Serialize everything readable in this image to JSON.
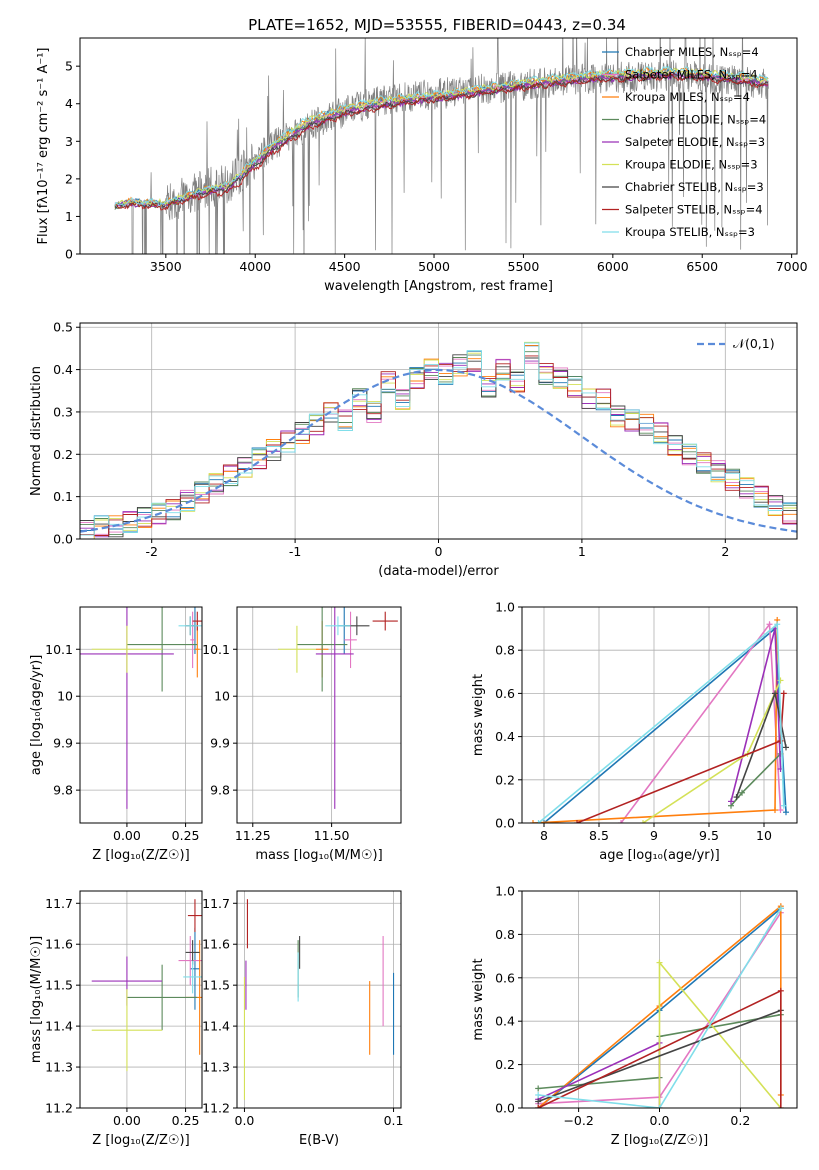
{
  "figure": {
    "title": "PLATE=1652, MJD=53555, FIBERID=0443, z=0.34"
  },
  "chart_data": [
    {
      "id": "spectrum",
      "type": "line",
      "xlabel": "wavelength [Angstrom, rest frame]",
      "ylabel": "Flux [fλ10⁻¹⁷ erg cm⁻² s⁻¹ A⁻¹]",
      "xlim": [
        3020,
        7030
      ],
      "ylim": [
        0,
        5.75
      ],
      "xticks": [
        3500,
        4000,
        4500,
        5000,
        5500,
        6000,
        6500,
        7000
      ],
      "yticks": [
        0,
        1,
        2,
        3,
        4,
        5
      ],
      "grid": false,
      "legend_position": "top-right",
      "data_range": [
        3215,
        6870
      ],
      "observed": {
        "color": "#808080",
        "x": [
          3215,
          3300,
          3500,
          3700,
          3850,
          3950,
          4100,
          4300,
          4500,
          4700,
          4900,
          5100,
          5300,
          5500,
          5700,
          5900,
          6100,
          6300,
          6500,
          6700,
          6870
        ],
        "y": [
          1.3,
          1.4,
          1.35,
          1.7,
          1.9,
          2.3,
          2.9,
          3.4,
          3.8,
          4.1,
          4.2,
          4.3,
          4.4,
          4.5,
          4.6,
          4.7,
          4.7,
          4.75,
          4.7,
          4.6,
          4.5
        ]
      },
      "series": [
        {
          "name": "Chabrier MILES, N_SSP=4",
          "color": "#1f77b4",
          "y": [
            1.25,
            1.38,
            1.33,
            1.68,
            1.82,
            2.25,
            2.9,
            3.55,
            3.85,
            4.05,
            4.15,
            4.25,
            4.4,
            4.55,
            4.65,
            4.75,
            4.8,
            4.85,
            4.8,
            4.7,
            4.6
          ]
        },
        {
          "name": "Salpeter MILES, N_SSP=4",
          "color": "#e377c2",
          "y": [
            1.27,
            1.37,
            1.32,
            1.66,
            1.8,
            2.22,
            2.85,
            3.5,
            3.8,
            4.0,
            4.12,
            4.22,
            4.36,
            4.5,
            4.6,
            4.7,
            4.75,
            4.8,
            4.75,
            4.65,
            4.55
          ]
        },
        {
          "name": "Kroupa MILES, N_SSP=4",
          "color": "#ff7f0e",
          "y": [
            1.28,
            1.4,
            1.36,
            1.7,
            1.85,
            2.28,
            2.95,
            3.6,
            3.9,
            4.1,
            4.2,
            4.3,
            4.45,
            4.6,
            4.7,
            4.8,
            4.85,
            4.9,
            4.85,
            4.75,
            4.65
          ]
        },
        {
          "name": "Chabrier ELODIE, N_SSP=4",
          "color": "#5c8a5c",
          "y": [
            1.24,
            1.36,
            1.31,
            1.64,
            1.78,
            2.2,
            2.82,
            3.45,
            3.78,
            3.98,
            4.1,
            4.2,
            4.34,
            4.48,
            4.58,
            4.68,
            4.72,
            4.78,
            4.73,
            4.63,
            4.53
          ]
        },
        {
          "name": "Salpeter ELODIE, N_SSP=3",
          "color": "#9b30b8",
          "y": [
            1.26,
            1.35,
            1.3,
            1.63,
            1.77,
            2.18,
            2.8,
            3.42,
            3.75,
            3.95,
            4.08,
            4.18,
            4.32,
            4.46,
            4.56,
            4.66,
            4.7,
            4.76,
            4.71,
            4.61,
            4.51
          ]
        },
        {
          "name": "Kroupa ELODIE, N_SSP=3",
          "color": "#d4e157",
          "y": [
            1.29,
            1.39,
            1.35,
            1.69,
            1.84,
            2.27,
            2.92,
            3.58,
            3.88,
            4.08,
            4.18,
            4.28,
            4.43,
            4.58,
            4.68,
            4.78,
            4.82,
            4.88,
            4.83,
            4.73,
            4.63
          ]
        },
        {
          "name": "Chabrier STELIB, N_SSP=3",
          "color": "#444444",
          "y": [
            1.23,
            1.34,
            1.29,
            1.62,
            1.76,
            2.17,
            2.78,
            3.4,
            3.73,
            3.93,
            4.06,
            4.16,
            4.3,
            4.44,
            4.54,
            4.64,
            4.68,
            4.74,
            4.69,
            4.59,
            4.49
          ]
        },
        {
          "name": "Salpeter STELIB, N_SSP=4",
          "color": "#b22222",
          "y": [
            1.22,
            1.3,
            1.25,
            1.55,
            1.65,
            2.05,
            2.7,
            3.35,
            3.7,
            3.9,
            4.05,
            4.15,
            4.3,
            4.42,
            4.52,
            4.62,
            4.66,
            4.72,
            4.67,
            4.57,
            4.47
          ]
        },
        {
          "name": "Kroupa STELIB, N_SSP=3",
          "color": "#80deea",
          "y": [
            1.3,
            1.41,
            1.37,
            1.71,
            1.86,
            2.3,
            2.97,
            3.62,
            3.92,
            4.12,
            4.22,
            4.32,
            4.47,
            4.62,
            4.72,
            4.82,
            4.87,
            4.92,
            4.87,
            4.77,
            4.67
          ]
        }
      ]
    },
    {
      "id": "residuals",
      "type": "line",
      "xlabel": "(data-model)/error",
      "ylabel": "Normed distribution",
      "xlim": [
        -2.5,
        2.5
      ],
      "ylim": [
        0,
        0.51
      ],
      "xticks": [
        -2,
        -1,
        0,
        1,
        2
      ],
      "yticks": [
        0.0,
        0.1,
        0.2,
        0.3,
        0.4,
        0.5
      ],
      "grid": true,
      "legend_position": "top-right",
      "legend": [
        {
          "name": "𝒩(0,1)",
          "color": "#5b8bd9",
          "style": "dashed"
        }
      ],
      "bin_width": 0.1,
      "histogram": [
        0.02,
        0.03,
        0.03,
        0.04,
        0.05,
        0.06,
        0.07,
        0.09,
        0.11,
        0.13,
        0.15,
        0.17,
        0.19,
        0.21,
        0.23,
        0.25,
        0.27,
        0.3,
        0.28,
        0.33,
        0.3,
        0.37,
        0.33,
        0.38,
        0.4,
        0.39,
        0.41,
        0.42,
        0.36,
        0.4,
        0.37,
        0.44,
        0.39,
        0.38,
        0.36,
        0.33,
        0.33,
        0.29,
        0.28,
        0.27,
        0.25,
        0.22,
        0.2,
        0.18,
        0.16,
        0.14,
        0.12,
        0.1,
        0.08,
        0.06
      ]
    },
    {
      "id": "age-vs-Z",
      "type": "scatter",
      "xlabel": "Z [log₁₀(Z/Z☉)]",
      "ylabel": "age  [log₁₀(age/yr)]",
      "xlim": [
        -0.2,
        0.32
      ],
      "ylim": [
        9.73,
        10.19
      ],
      "xticks": [
        0.0,
        0.25
      ],
      "xticklabels": [
        "0.00",
        "0.25"
      ],
      "yticks": [
        9.8,
        9.9,
        10.0,
        10.1
      ],
      "grid": true,
      "points": [
        {
          "color": "#1f77b4",
          "x": 0.29,
          "xerr": 0.01,
          "y": 10.15,
          "yerr": 0.06
        },
        {
          "color": "#e377c2",
          "x": 0.28,
          "xerr": 0.01,
          "y": 10.12,
          "yerr": 0.06
        },
        {
          "color": "#ff7f0e",
          "x": 0.3,
          "xerr": 0.01,
          "y": 10.1,
          "yerr": 0.06
        },
        {
          "color": "#5c8a5c",
          "x": 0.15,
          "xerr": 0.15,
          "y": 10.11,
          "yerr": 0.1
        },
        {
          "color": "#9b30b8",
          "x": 0.0,
          "xerr": 0.2,
          "y": 10.09,
          "yerr": 0.33
        },
        {
          "color": "#d4e157",
          "x": 0.0,
          "xerr": 0.15,
          "y": 10.1,
          "yerr": 0.05
        },
        {
          "color": "#444444",
          "x": 0.27,
          "xerr": 0.02,
          "y": 10.15,
          "yerr": 0.02
        },
        {
          "color": "#b22222",
          "x": 0.3,
          "xerr": 0.02,
          "y": 10.16,
          "yerr": 0.02
        },
        {
          "color": "#80deea",
          "x": 0.27,
          "xerr": 0.05,
          "y": 10.15,
          "yerr": 0.02
        }
      ]
    },
    {
      "id": "age-vs-mass",
      "type": "scatter",
      "xlabel": "mass [log₁₀(M/M☉)]",
      "ylabel": "",
      "xlim": [
        11.2,
        11.72
      ],
      "ylim": [
        9.73,
        10.19
      ],
      "xticks": [
        11.25,
        11.5
      ],
      "xticklabels": [
        "11.25",
        "11.50"
      ],
      "yticks": [
        9.8,
        9.9,
        10.0,
        10.1
      ],
      "grid": true,
      "points": [
        {
          "color": "#1f77b4",
          "x": 11.54,
          "xerr": 0.02,
          "y": 10.15,
          "yerr": 0.06
        },
        {
          "color": "#e377c2",
          "x": 11.56,
          "xerr": 0.02,
          "y": 10.12,
          "yerr": 0.06
        },
        {
          "color": "#ff7f0e",
          "x": 11.47,
          "xerr": 0.02,
          "y": 10.1,
          "yerr": 0.06
        },
        {
          "color": "#5c8a5c",
          "x": 11.47,
          "xerr": 0.08,
          "y": 10.11,
          "yerr": 0.1
        },
        {
          "color": "#9b30b8",
          "x": 11.51,
          "xerr": 0.06,
          "y": 10.09,
          "yerr": 0.33
        },
        {
          "color": "#d4e157",
          "x": 11.39,
          "xerr": 0.06,
          "y": 10.1,
          "yerr": 0.05
        },
        {
          "color": "#444444",
          "x": 11.58,
          "xerr": 0.04,
          "y": 10.15,
          "yerr": 0.02
        },
        {
          "color": "#b22222",
          "x": 11.67,
          "xerr": 0.04,
          "y": 10.16,
          "yerr": 0.02
        },
        {
          "color": "#80deea",
          "x": 11.52,
          "xerr": 0.04,
          "y": 10.15,
          "yerr": 0.02
        }
      ]
    },
    {
      "id": "weight-vs-age",
      "type": "line",
      "xlabel": "age  [log₁₀(age/yr)]",
      "ylabel": "mass weight",
      "xlim": [
        7.8,
        10.3
      ],
      "ylim": [
        0,
        1.0
      ],
      "xticks": [
        8.0,
        8.5,
        9.0,
        9.5,
        10.0
      ],
      "yticks": [
        0.0,
        0.2,
        0.4,
        0.6,
        0.8,
        1.0
      ],
      "grid": true,
      "series": [
        {
          "color": "#1f77b4",
          "x": [
            8.0,
            10.1,
            10.2
          ],
          "y": [
            0.0,
            0.9,
            0.05
          ]
        },
        {
          "color": "#e377c2",
          "x": [
            8.7,
            10.05,
            10.15
          ],
          "y": [
            0.0,
            0.92,
            0.06
          ]
        },
        {
          "color": "#ff7f0e",
          "x": [
            7.9,
            10.1,
            10.12
          ],
          "y": [
            0.0,
            0.06,
            0.94
          ]
        },
        {
          "color": "#5c8a5c",
          "x": [
            9.7,
            9.8,
            10.15
          ],
          "y": [
            0.08,
            0.14,
            0.32
          ]
        },
        {
          "color": "#9b30b8",
          "x": [
            9.7,
            10.1,
            10.15
          ],
          "y": [
            0.1,
            0.9,
            0.25
          ]
        },
        {
          "color": "#d4e157",
          "x": [
            8.9,
            9.85,
            10.15
          ],
          "y": [
            0.0,
            0.32,
            0.66
          ]
        },
        {
          "color": "#444444",
          "x": [
            9.75,
            10.1,
            10.2
          ],
          "y": [
            0.12,
            0.6,
            0.35
          ]
        },
        {
          "color": "#b22222",
          "x": [
            8.3,
            10.15,
            10.18
          ],
          "y": [
            0.0,
            0.38,
            0.6
          ]
        },
        {
          "color": "#80deea",
          "x": [
            7.95,
            10.12,
            10.18
          ],
          "y": [
            0.0,
            0.92,
            0.08
          ]
        }
      ]
    },
    {
      "id": "mass-vs-Z",
      "type": "scatter",
      "xlabel": "Z [log₁₀(Z/Z☉)]",
      "ylabel": "mass [log₁₀(M/M☉)]",
      "xlim": [
        -0.2,
        0.32
      ],
      "ylim": [
        11.2,
        11.73
      ],
      "xticks": [
        0.0,
        0.25
      ],
      "xticklabels": [
        "0.00",
        "0.25"
      ],
      "yticks": [
        11.2,
        11.3,
        11.4,
        11.5,
        11.6,
        11.7
      ],
      "grid": true,
      "points": [
        {
          "color": "#1f77b4",
          "x": 0.29,
          "xerr": 0.02,
          "y": 11.54,
          "yerr": 0.1
        },
        {
          "color": "#e377c2",
          "x": 0.27,
          "xerr": 0.05,
          "y": 11.56,
          "yerr": 0.06
        },
        {
          "color": "#ff7f0e",
          "x": 0.31,
          "xerr": 0.06,
          "y": 11.47,
          "yerr": 0.14
        },
        {
          "color": "#5c8a5c",
          "x": 0.15,
          "xerr": 0.15,
          "y": 11.47,
          "yerr": 0.08
        },
        {
          "color": "#9b30b8",
          "x": 0.0,
          "xerr": 0.15,
          "y": 11.51,
          "yerr": 0.06
        },
        {
          "color": "#d4e157",
          "x": 0.0,
          "xerr": 0.15,
          "y": 11.39,
          "yerr": 0.1
        },
        {
          "color": "#444444",
          "x": 0.28,
          "xerr": 0.03,
          "y": 11.58,
          "yerr": 0.03
        },
        {
          "color": "#b22222",
          "x": 0.29,
          "xerr": 0.03,
          "y": 11.67,
          "yerr": 0.04
        },
        {
          "color": "#80deea",
          "x": 0.28,
          "xerr": 0.04,
          "y": 11.52,
          "yerr": 0.04
        }
      ]
    },
    {
      "id": "mass-vs-ebv",
      "type": "scatter",
      "xlabel": "E(B-V)",
      "ylabel": "",
      "xlim": [
        -0.005,
        0.105
      ],
      "ylim": [
        11.2,
        11.73
      ],
      "xticks": [
        0.0,
        0.1
      ],
      "xticklabels": [
        "0.0",
        "0.1"
      ],
      "yticks": [
        11.2,
        11.3,
        11.4,
        11.5,
        11.6,
        11.7
      ],
      "grid": true,
      "points": [
        {
          "color": "#1f77b4",
          "x": 0.1,
          "xerr": 0.0,
          "y": 11.43,
          "yerr": 0.1
        },
        {
          "color": "#e377c2",
          "x": 0.093,
          "xerr": 0.0,
          "y": 11.51,
          "yerr": 0.11
        },
        {
          "color": "#ff7f0e",
          "x": 0.084,
          "xerr": 0.0,
          "y": 11.42,
          "yerr": 0.09
        },
        {
          "color": "#5c8a5c",
          "x": 0.036,
          "xerr": 0.0,
          "y": 11.54,
          "yerr": 0.07
        },
        {
          "color": "#9b30b8",
          "x": 0.001,
          "xerr": 0.0,
          "y": 11.5,
          "yerr": 0.06
        },
        {
          "color": "#d4e157",
          "x": 0.0,
          "xerr": 0.0,
          "y": 11.37,
          "yerr": 0.15
        },
        {
          "color": "#444444",
          "x": 0.037,
          "xerr": 0.0,
          "y": 11.58,
          "yerr": 0.04
        },
        {
          "color": "#b22222",
          "x": 0.002,
          "xerr": 0.0,
          "y": 11.65,
          "yerr": 0.06
        },
        {
          "color": "#80deea",
          "x": 0.036,
          "xerr": 0.0,
          "y": 11.52,
          "yerr": 0.06
        }
      ]
    },
    {
      "id": "weight-vs-Z",
      "type": "line",
      "xlabel": "Z [log₁₀(Z/Z☉)]",
      "ylabel": "mass weight",
      "xlim": [
        -0.34,
        0.34
      ],
      "ylim": [
        0,
        1.0
      ],
      "xticks": [
        -0.2,
        0.0,
        0.2
      ],
      "xticklabels": [
        "−0.2",
        "0.0",
        "0.2"
      ],
      "yticks": [
        0.0,
        0.2,
        0.4,
        0.6,
        0.8,
        1.0
      ],
      "grid": true,
      "series": [
        {
          "color": "#1f77b4",
          "x": [
            -0.3,
            0.0,
            0.3
          ],
          "y": [
            0.0,
            0.45,
            0.92
          ]
        },
        {
          "color": "#e377c2",
          "x": [
            -0.3,
            0.0,
            0.3
          ],
          "y": [
            0.02,
            0.05,
            0.9
          ]
        },
        {
          "color": "#ff7f0e",
          "x": [
            -0.3,
            0.0,
            0.3,
            0.3
          ],
          "y": [
            0.0,
            0.47,
            0.93,
            0.06
          ]
        },
        {
          "color": "#5c8a5c",
          "x": [
            -0.3,
            0.0,
            0.0,
            0.3
          ],
          "y": [
            0.09,
            0.14,
            0.33,
            0.43
          ]
        },
        {
          "color": "#9b30b8",
          "x": [
            -0.3,
            0.0,
            0.0
          ],
          "y": [
            0.04,
            0.3,
            0.0
          ]
        },
        {
          "color": "#d4e157",
          "x": [
            0.0,
            0.0,
            0.3
          ],
          "y": [
            0.0,
            0.67,
            0.0
          ]
        },
        {
          "color": "#444444",
          "x": [
            -0.3,
            0.3
          ],
          "y": [
            0.03,
            0.45
          ]
        },
        {
          "color": "#b22222",
          "x": [
            -0.3,
            0.3,
            0.3
          ],
          "y": [
            0.0,
            0.54,
            0.0
          ]
        },
        {
          "color": "#80deea",
          "x": [
            -0.3,
            0.0,
            0.3
          ],
          "y": [
            0.06,
            0.0,
            0.92
          ]
        }
      ]
    }
  ]
}
